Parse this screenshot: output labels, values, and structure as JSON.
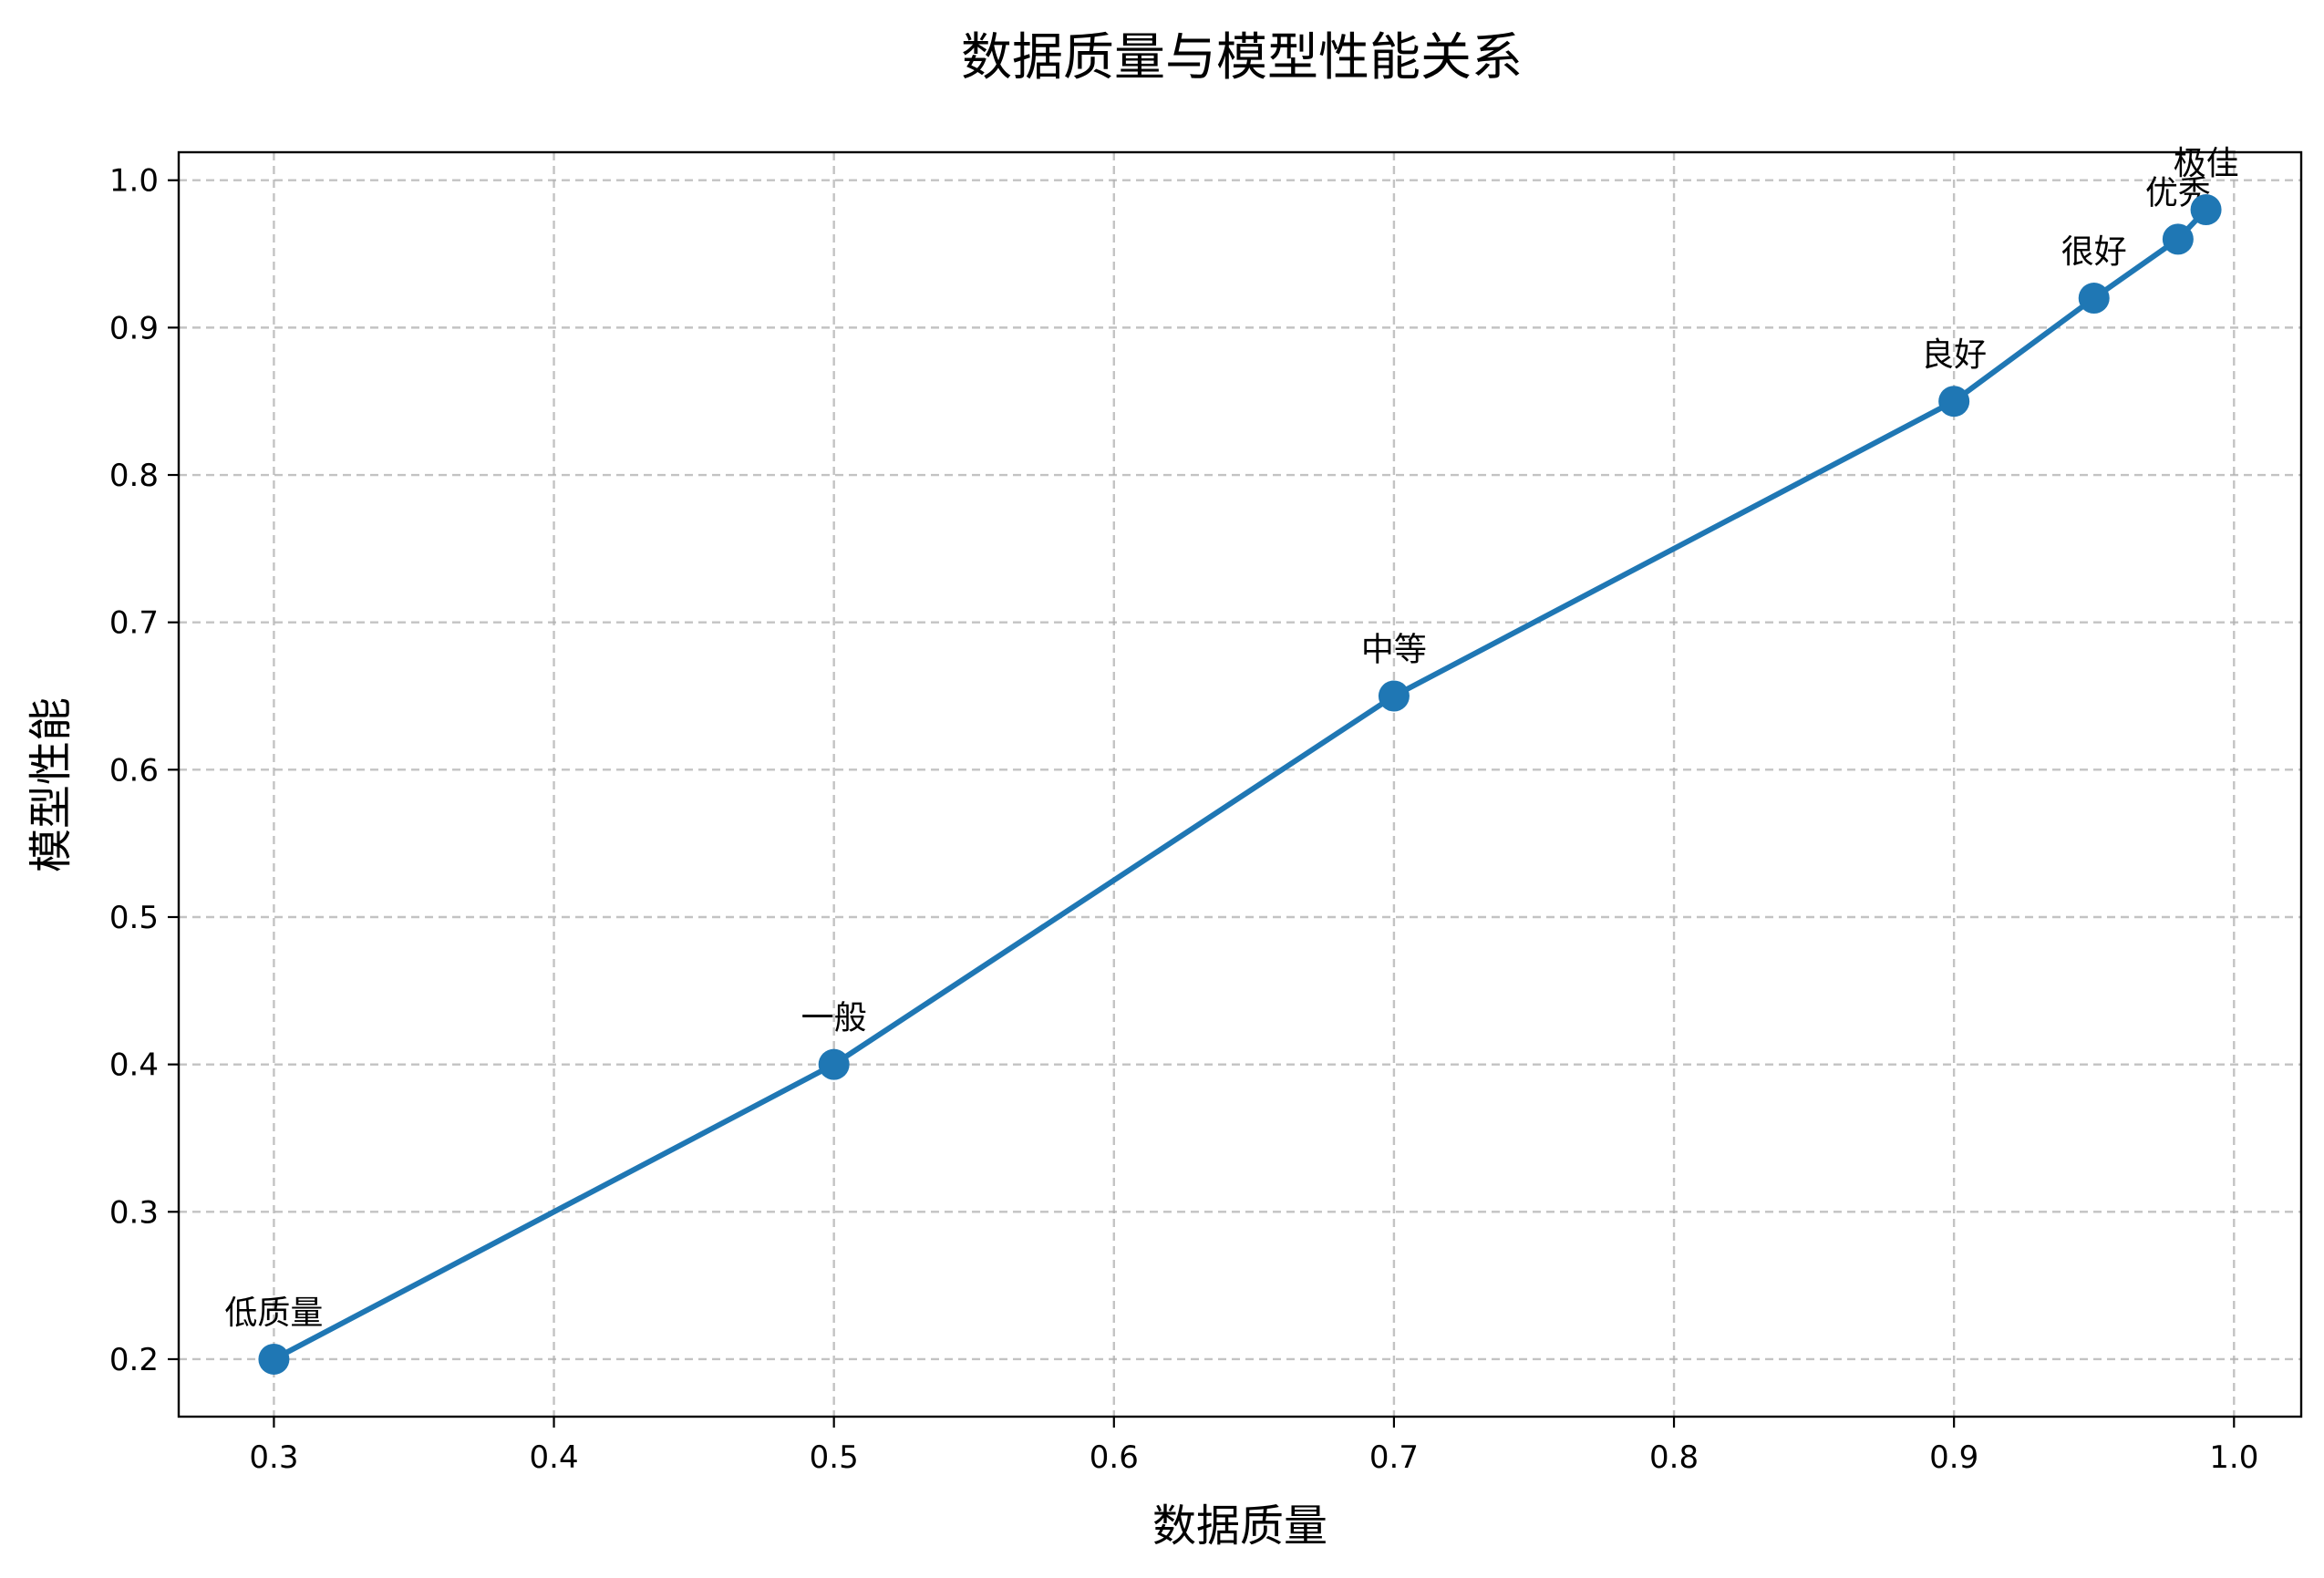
{
  "chart_data": {
    "type": "line",
    "title": "数据质量与模型性能关系",
    "xlabel": "数据质量",
    "ylabel": "模型性能",
    "xlim": [
      0.266,
      1.024
    ],
    "ylim": [
      0.161,
      1.019
    ],
    "xticks": [
      0.3,
      0.4,
      0.5,
      0.6,
      0.7,
      0.8,
      0.9,
      1.0
    ],
    "yticks": [
      0.2,
      0.3,
      0.4,
      0.5,
      0.6,
      0.7,
      0.8,
      0.9,
      1.0
    ],
    "xtick_labels": [
      "0.3",
      "0.4",
      "0.5",
      "0.6",
      "0.7",
      "0.8",
      "0.9",
      "1.0"
    ],
    "ytick_labels": [
      "0.2",
      "0.3",
      "0.4",
      "0.5",
      "0.6",
      "0.7",
      "0.8",
      "0.9",
      "1.0"
    ],
    "grid": true,
    "series_color": "#1f77b4",
    "points": [
      {
        "x": 0.3,
        "y": 0.2,
        "label": "低质量"
      },
      {
        "x": 0.5,
        "y": 0.4,
        "label": "一般"
      },
      {
        "x": 0.7,
        "y": 0.65,
        "label": "中等"
      },
      {
        "x": 0.9,
        "y": 0.85,
        "label": "良好"
      },
      {
        "x": 0.95,
        "y": 0.92,
        "label": "很好"
      },
      {
        "x": 0.98,
        "y": 0.96,
        "label": "优秀"
      },
      {
        "x": 0.99,
        "y": 0.98,
        "label": "极佳"
      }
    ]
  }
}
